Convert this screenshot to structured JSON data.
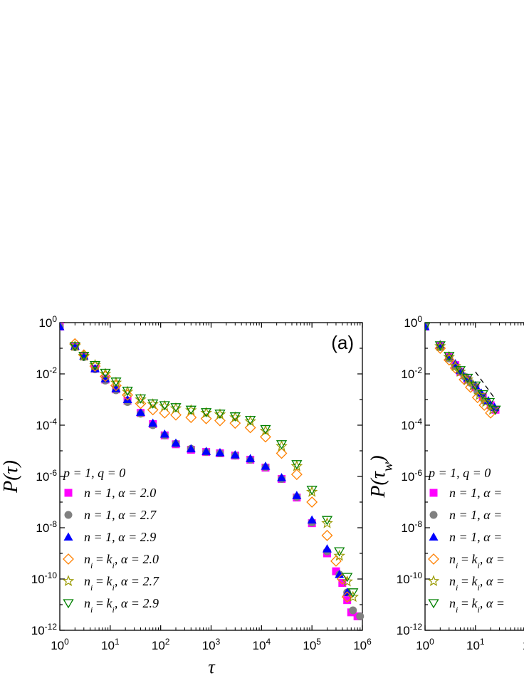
{
  "chart_data": [
    {
      "panel_label": "(a)",
      "type": "scatter",
      "xlabel": "τ",
      "ylabel": "P(τ)",
      "x_scale": "log",
      "y_scale": "log",
      "xlim": [
        1,
        1000000
      ],
      "ylim": [
        1e-12,
        1
      ],
      "x_ticks": [
        {
          "base": "10",
          "exp": "0"
        },
        {
          "base": "10",
          "exp": "1"
        },
        {
          "base": "10",
          "exp": "2"
        },
        {
          "base": "10",
          "exp": "3"
        },
        {
          "base": "10",
          "exp": "4"
        },
        {
          "base": "10",
          "exp": "5"
        },
        {
          "base": "10",
          "exp": "6"
        }
      ],
      "y_ticks": [
        {
          "base": "10",
          "exp": "0"
        },
        {
          "base": "10",
          "exp": "-2"
        },
        {
          "base": "10",
          "exp": "-4"
        },
        {
          "base": "10",
          "exp": "-6"
        },
        {
          "base": "10",
          "exp": "-8"
        },
        {
          "base": "10",
          "exp": "-10"
        },
        {
          "base": "10",
          "exp": "-12"
        }
      ],
      "legend_title": "p = 1, q = 0",
      "legend_position": "bottom-left",
      "series": [
        {
          "name": "n = 1, α = 2.0",
          "marker": "square-filled",
          "color": "#ff00ff",
          "x": [
            1,
            2,
            3,
            5,
            8,
            13,
            22,
            40,
            70,
            120,
            200,
            400,
            800,
            1500,
            3000,
            6000,
            12000,
            25000,
            50000,
            100000,
            200000,
            300000,
            400000,
            500000,
            600000,
            800000
          ],
          "y": [
            0.7,
            0.12,
            0.05,
            0.016,
            0.006,
            0.0025,
            0.0009,
            0.0003,
            0.00011,
            4e-05,
            1.8e-05,
            1.1e-05,
            9e-06,
            8e-06,
            6.5e-06,
            4.5e-06,
            2.2e-06,
            8e-07,
            1.5e-07,
            1.5e-08,
            1e-09,
            2e-10,
            7e-11,
            1.5e-11,
            5e-12,
            3.5e-12
          ]
        },
        {
          "name": "n = 1, α = 2.7",
          "marker": "circle-filled",
          "color": "#808080",
          "x": [
            1,
            2,
            3,
            5,
            8,
            13,
            22,
            40,
            70,
            120,
            200,
            400,
            800,
            1500,
            3000,
            6000,
            12000,
            25000,
            50000,
            100000,
            200000,
            350000,
            500000,
            650000,
            900000
          ],
          "y": [
            0.7,
            0.11,
            0.045,
            0.015,
            0.0055,
            0.0023,
            0.0008,
            0.00028,
            0.0001,
            4e-05,
            1.9e-05,
            1.2e-05,
            9e-06,
            8e-06,
            6.5e-06,
            4.5e-06,
            2.3e-06,
            8e-07,
            1.6e-07,
            1.6e-08,
            1.2e-09,
            1.5e-10,
            3e-11,
            6e-12,
            3.5e-12
          ]
        },
        {
          "name": "n = 1, α = 2.9",
          "marker": "triangle-up-filled",
          "color": "#0000ff",
          "x": [
            1,
            2,
            3,
            5,
            8,
            13,
            22,
            40,
            70,
            120,
            200,
            400,
            800,
            1500,
            3000,
            6000,
            12000,
            25000,
            50000,
            100000,
            200000,
            350000,
            500000
          ],
          "y": [
            0.7,
            0.12,
            0.05,
            0.016,
            0.0065,
            0.0027,
            0.001,
            0.00032,
            0.00012,
            4.5e-05,
            2e-05,
            1.2e-05,
            9.5e-06,
            8.5e-06,
            7e-06,
            5e-06,
            2.5e-06,
            9e-07,
            1.8e-07,
            2e-08,
            1.5e-09,
            1.5e-10,
            3e-11
          ]
        },
        {
          "name": "n_i = k_i, α = 2.0",
          "marker": "diamond-open",
          "color": "#ff8000",
          "x": [
            2,
            3,
            5,
            8,
            13,
            22,
            40,
            70,
            120,
            200,
            400,
            800,
            1500,
            3000,
            6000,
            12000,
            25000,
            50000,
            100000,
            200000,
            300000,
            400000,
            500000
          ],
          "y": [
            0.15,
            0.055,
            0.02,
            0.008,
            0.0035,
            0.0015,
            0.0007,
            0.0004,
            0.0003,
            0.00025,
            0.0002,
            0.00018,
            0.00015,
            0.00012,
            8e-05,
            3.5e-05,
            8e-06,
            1.2e-06,
            1e-07,
            5e-09,
            5e-10,
            1e-10,
            2e-11
          ]
        },
        {
          "name": "n_i = k_i, α = 2.7",
          "marker": "star-open",
          "color": "#999900",
          "x": [
            2,
            3,
            5,
            8,
            13,
            22,
            40,
            70,
            120,
            200,
            400,
            800,
            1500,
            3000,
            6000,
            12000,
            25000,
            50000,
            100000,
            200000,
            350000,
            500000,
            650000
          ],
          "y": [
            0.12,
            0.05,
            0.022,
            0.01,
            0.0045,
            0.002,
            0.001,
            0.00065,
            0.00055,
            0.00045,
            0.00038,
            0.0003,
            0.00026,
            0.0002,
            0.00014,
            6e-05,
            1.5e-05,
            2.5e-06,
            2.5e-07,
            1.5e-08,
            8e-10,
            8e-11,
            2e-11
          ]
        },
        {
          "name": "n_i = k_i, α = 2.9",
          "marker": "triangle-down-open",
          "color": "#008000",
          "x": [
            2,
            3,
            5,
            8,
            13,
            22,
            40,
            70,
            120,
            200,
            400,
            800,
            1500,
            3000,
            6000,
            12000,
            25000,
            50000,
            100000,
            200000,
            350000,
            500000,
            650000
          ],
          "y": [
            0.12,
            0.05,
            0.022,
            0.011,
            0.005,
            0.0022,
            0.0011,
            0.0007,
            0.0006,
            0.0005,
            0.0004,
            0.00032,
            0.00028,
            0.00022,
            0.00016,
            7e-05,
            1.8e-05,
            3e-06,
            3e-07,
            2e-08,
            1.2e-09,
            1.2e-10,
            3e-11
          ]
        }
      ]
    },
    {
      "type": "scatter",
      "ylabel_base": "P(τ",
      "ylabel_sub": "w",
      "ylabel_end": ")",
      "x_scale": "log",
      "y_scale": "log",
      "xlim_visible": [
        1,
        25
      ],
      "ylim": [
        1e-12,
        1
      ],
      "x_ticks": [
        {
          "base": "10",
          "exp": "0"
        },
        {
          "base": "10",
          "exp": "1"
        },
        {
          "base": "1",
          "exp": ""
        }
      ],
      "y_ticks": [
        {
          "base": "10",
          "exp": "0"
        },
        {
          "base": "10",
          "exp": "-2"
        },
        {
          "base": "10",
          "exp": "-4"
        },
        {
          "base": "10",
          "exp": "-6"
        },
        {
          "base": "10",
          "exp": "-8"
        },
        {
          "base": "10",
          "exp": "-10"
        },
        {
          "base": "10",
          "exp": "-12"
        }
      ],
      "legend_title": "p = 1, q = 0",
      "legend_entries": [
        {
          "text": "n = 1, α =",
          "marker": "square-filled",
          "color": "#ff00ff"
        },
        {
          "text": "n = 1, α =",
          "marker": "circle-filled",
          "color": "#808080"
        },
        {
          "text": "n = 1, α =",
          "marker": "triangle-up-filled",
          "color": "#0000ff"
        },
        {
          "text": "n_i = k_i, α =",
          "marker": "diamond-open",
          "color": "#ff8000"
        },
        {
          "text": "n_i = k_i, α =",
          "marker": "star-open",
          "color": "#999900"
        },
        {
          "text": "n_i = k_i, α =",
          "marker": "triangle-down-open",
          "color": "#008000"
        }
      ],
      "reference_line": {
        "style": "dashed",
        "x": [
          10,
          25
        ],
        "y": [
          0.012,
          0.001
        ]
      },
      "series": [
        {
          "marker": "square-filled",
          "color": "#ff00ff",
          "x": [
            1,
            2,
            3,
            4,
            5,
            7,
            10,
            14,
            20,
            25
          ],
          "y": [
            0.7,
            0.12,
            0.045,
            0.022,
            0.012,
            0.006,
            0.003,
            0.0013,
            0.0006,
            0.0004
          ]
        },
        {
          "marker": "circle-filled",
          "color": "#808080",
          "x": [
            1,
            2,
            3,
            4,
            6,
            8,
            11,
            15,
            21
          ],
          "y": [
            0.7,
            0.11,
            0.04,
            0.02,
            0.008,
            0.0045,
            0.002,
            0.0009,
            0.0005
          ]
        },
        {
          "marker": "triangle-up-filled",
          "color": "#0000ff",
          "x": [
            1,
            2,
            3,
            4,
            5,
            7,
            10,
            13,
            18,
            24
          ],
          "y": [
            0.7,
            0.14,
            0.05,
            0.025,
            0.014,
            0.007,
            0.0035,
            0.0018,
            0.0009,
            0.0005
          ]
        },
        {
          "marker": "diamond-open",
          "color": "#ff8000",
          "x": [
            2,
            3,
            4,
            6,
            8,
            11,
            15,
            20
          ],
          "y": [
            0.1,
            0.035,
            0.017,
            0.006,
            0.003,
            0.0012,
            0.0006,
            0.0003
          ]
        },
        {
          "marker": "star-open",
          "color": "#999900",
          "x": [
            2,
            3,
            4,
            5,
            7,
            9,
            12,
            16,
            22
          ],
          "y": [
            0.12,
            0.045,
            0.02,
            0.012,
            0.006,
            0.0035,
            0.0015,
            0.0008,
            0.0004
          ]
        },
        {
          "marker": "triangle-down-open",
          "color": "#008000",
          "x": [
            1,
            2,
            3,
            5,
            7,
            10,
            14,
            19,
            25
          ],
          "y": [
            0.7,
            0.13,
            0.05,
            0.014,
            0.007,
            0.0035,
            0.0016,
            0.0008,
            0.0004
          ]
        }
      ]
    }
  ]
}
